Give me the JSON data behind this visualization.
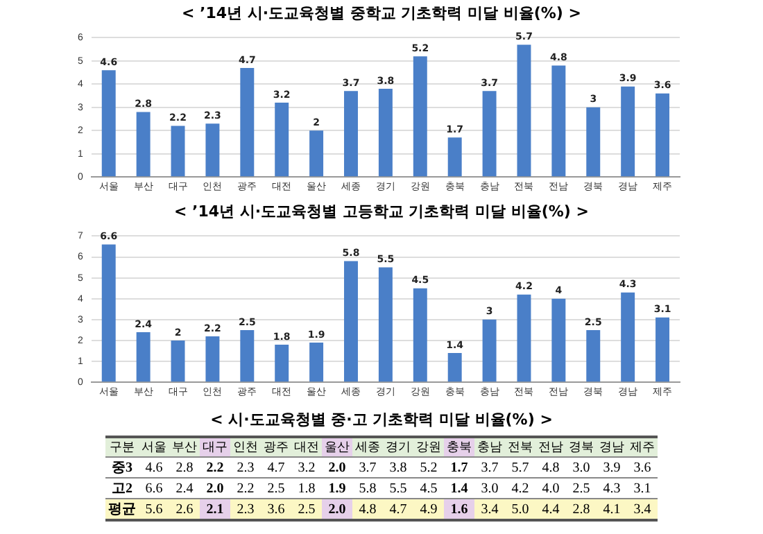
{
  "chart_data": [
    {
      "type": "bar",
      "title": "< ’14년 시·도교육청별 중학교 기초학력 미달 비율(%) >",
      "categories": [
        "서울",
        "부산",
        "대구",
        "인천",
        "광주",
        "대전",
        "울산",
        "세종",
        "경기",
        "강원",
        "충북",
        "충남",
        "전북",
        "전남",
        "경북",
        "경남",
        "제주"
      ],
      "values": [
        4.6,
        2.8,
        2.2,
        2.3,
        4.7,
        3.2,
        2,
        3.7,
        3.8,
        5.2,
        1.7,
        3.7,
        5.7,
        4.8,
        3,
        3.9,
        3.6
      ],
      "color": "#4a7fc8",
      "ylim": [
        0,
        6
      ],
      "yticks": [
        0,
        1,
        2,
        3,
        4,
        5,
        6
      ],
      "grid": "y",
      "data_labels": true
    },
    {
      "type": "bar",
      "title": "< ’14년 시·도교육청별 고등학교 기초학력 미달 비율(%) >",
      "categories": [
        "서울",
        "부산",
        "대구",
        "인천",
        "광주",
        "대전",
        "울산",
        "세종",
        "경기",
        "강원",
        "충북",
        "충남",
        "전북",
        "전남",
        "경북",
        "경남",
        "제주"
      ],
      "values": [
        6.6,
        2.4,
        2,
        2.2,
        2.5,
        1.8,
        1.9,
        5.8,
        5.5,
        4.5,
        1.4,
        3,
        4.2,
        4,
        2.5,
        4.3,
        3.1
      ],
      "color": "#4a7fc8",
      "ylim": [
        0,
        7
      ],
      "yticks": [
        0,
        1,
        2,
        3,
        4,
        5,
        6,
        7
      ],
      "grid": "y",
      "data_labels": true
    },
    {
      "type": "heatmap",
      "title": "< 시·도교육청별 중·고 기초학력 미달 비율(%) >",
      "ylabel": "구분",
      "categories": [
        "서울",
        "부산",
        "대구",
        "인천",
        "광주",
        "대전",
        "울산",
        "세종",
        "경기",
        "강원",
        "충북",
        "충남",
        "전북",
        "전남",
        "경북",
        "경남",
        "제주"
      ],
      "y_categories": [
        "중3",
        "고2",
        "평균"
      ],
      "cells": [
        [
          4.6,
          2.8,
          2.2,
          2.3,
          4.7,
          3.2,
          2.0,
          3.7,
          3.8,
          5.2,
          1.7,
          3.7,
          5.7,
          4.8,
          3.0,
          3.9,
          3.6
        ],
        [
          6.6,
          2.4,
          2.0,
          2.2,
          2.5,
          1.8,
          1.9,
          5.8,
          5.5,
          4.5,
          1.4,
          3.0,
          4.2,
          4.0,
          2.5,
          4.3,
          3.1
        ],
        [
          5.6,
          2.6,
          2.1,
          2.3,
          3.6,
          2.5,
          2.0,
          4.8,
          4.7,
          4.9,
          1.6,
          3.4,
          5.0,
          4.4,
          2.8,
          4.1,
          3.4
        ]
      ],
      "cell_labels": [
        [
          "4.6",
          "2.8",
          "2.2",
          "2.3",
          "4.7",
          "3.2",
          "2.0",
          "3.7",
          "3.8",
          "5.2",
          "1.7",
          "3.7",
          "5.7",
          "4.8",
          "3.0",
          "3.9",
          "3.6"
        ],
        [
          "6.6",
          "2.4",
          "2.0",
          "2.2",
          "2.5",
          "1.8",
          "1.9",
          "5.8",
          "5.5",
          "4.5",
          "1.4",
          "3.0",
          "4.2",
          "4.0",
          "2.5",
          "4.3",
          "3.1"
        ],
        [
          "5.6",
          "2.6",
          "2.1",
          "2.3",
          "3.6",
          "2.5",
          "2.0",
          "4.8",
          "4.7",
          "4.9",
          "1.6",
          "3.4",
          "5.0",
          "4.4",
          "2.8",
          "4.1",
          "3.4"
        ]
      ]
    }
  ]
}
